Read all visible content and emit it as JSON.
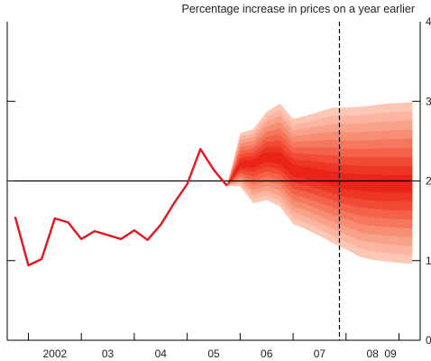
{
  "chart_data": {
    "type": "line",
    "title": "",
    "ylabel": "Percentage increase in prices on a year earlier",
    "ylim": [
      0,
      4
    ],
    "yticks": [
      0,
      1,
      2,
      3,
      4
    ],
    "ytick_labels": [
      "0",
      "1",
      "2",
      "3",
      "4"
    ],
    "xlim": [
      2001.6,
      2009.4
    ],
    "xticks": [
      {
        "label": "2002",
        "x": 2002.5
      },
      {
        "label": "03",
        "x": 2003.5
      },
      {
        "label": "04",
        "x": 2004.5
      },
      {
        "label": "05",
        "x": 2005.5
      },
      {
        "label": "06",
        "x": 2006.5
      },
      {
        "label": "07",
        "x": 2007.5
      },
      {
        "label": "08",
        "x": 2008.5
      },
      {
        "label": "09",
        "x": 2009.5
      }
    ],
    "x_dividers": [
      2002,
      2003,
      2004,
      2005,
      2006,
      2007,
      2008,
      2009
    ],
    "grid": false,
    "target_line": 2.0,
    "forecast_start_line": 2007.875,
    "series": [
      {
        "values": [
          {
            "x": 2001.75,
            "y": 1.55
          },
          {
            "x": 2002.0,
            "y": 0.94
          },
          {
            "x": 2002.25,
            "y": 1.02
          },
          {
            "x": 2002.5,
            "y": 1.53
          },
          {
            "x": 2002.75,
            "y": 1.48
          },
          {
            "x": 2003.0,
            "y": 1.27
          },
          {
            "x": 2003.25,
            "y": 1.37
          },
          {
            "x": 2003.5,
            "y": 1.32
          },
          {
            "x": 2003.75,
            "y": 1.27
          },
          {
            "x": 2004.0,
            "y": 1.38
          },
          {
            "x": 2004.25,
            "y": 1.26
          },
          {
            "x": 2004.5,
            "y": 1.45
          },
          {
            "x": 2004.75,
            "y": 1.72
          },
          {
            "x": 2005.0,
            "y": 1.96
          },
          {
            "x": 2005.25,
            "y": 2.4
          },
          {
            "x": 2005.5,
            "y": 2.14
          },
          {
            "x": 2005.75,
            "y": 1.94
          }
        ]
      }
    ],
    "fan": {
      "start": {
        "x": 2005.75,
        "y": 1.94
      },
      "x": [
        2006.0,
        2006.25,
        2006.5,
        2006.75,
        2007.0,
        2007.25,
        2007.5,
        2007.75,
        2008.0,
        2008.25,
        2008.5,
        2008.75,
        2009.0,
        2009.25
      ],
      "central": [
        2.2,
        2.22,
        2.3,
        2.28,
        2.13,
        2.1,
        2.06,
        2.02,
        1.99,
        1.98,
        1.97,
        1.96,
        1.96,
        1.96
      ],
      "upper_90": [
        2.6,
        2.65,
        2.87,
        2.97,
        2.78,
        2.82,
        2.87,
        2.92,
        2.92,
        2.93,
        2.95,
        2.97,
        2.98,
        2.99
      ],
      "lower_90": [
        1.93,
        1.72,
        1.76,
        1.68,
        1.46,
        1.39,
        1.31,
        1.22,
        1.14,
        1.05,
        1.01,
        0.99,
        0.97,
        0.96
      ],
      "bands": 9,
      "colors": [
        "#fcc7b5",
        "#fbb5a0",
        "#f9a28a",
        "#f78e74",
        "#f5785e",
        "#f36249",
        "#f14b36",
        "#ee3626",
        "#ea2418"
      ]
    },
    "colors": {
      "projection_line": "#e8141c",
      "axis": "#000000",
      "target_line": "#000000",
      "divider": "#000000"
    }
  }
}
